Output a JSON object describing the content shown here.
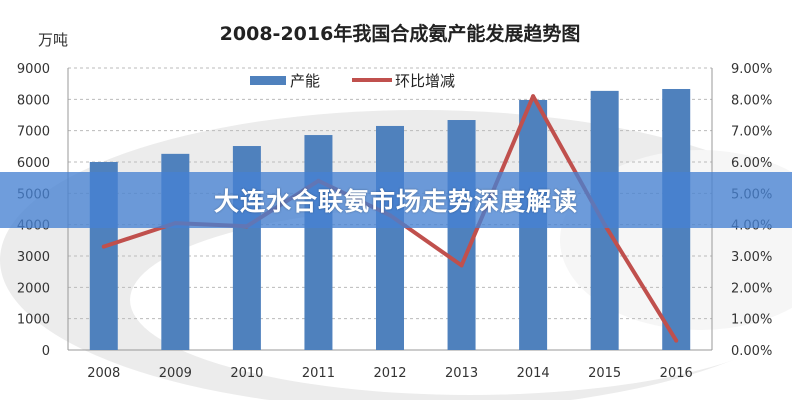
{
  "banner": {
    "title": "大连水合联氨市场走势深度解读"
  },
  "chart_data": {
    "type": "bar+line",
    "title": "2008-2016年我国合成氨产能发展趋势图",
    "ylabel": "万吨",
    "categories": [
      "2008",
      "2009",
      "2010",
      "2011",
      "2012",
      "2013",
      "2014",
      "2015",
      "2016"
    ],
    "series": [
      {
        "name": "产能",
        "type": "bar",
        "axis": "left",
        "color": "#4f81bd",
        "values": [
          6000,
          6260,
          6510,
          6860,
          7150,
          7340,
          7980,
          8270,
          8330
        ]
      },
      {
        "name": "环比增减",
        "type": "line",
        "axis": "right",
        "color": "#c0504d",
        "values": [
          3.3,
          4.05,
          3.95,
          5.4,
          4.3,
          2.7,
          8.1,
          4.0,
          0.3
        ]
      }
    ],
    "ylim": [
      0,
      9000
    ],
    "y2lim": [
      0,
      9
    ],
    "yticks": [
      "0",
      "1000",
      "2000",
      "3000",
      "4000",
      "5000",
      "6000",
      "7000",
      "8000",
      "9000"
    ],
    "y2ticks": [
      "0.00%",
      "1.00%",
      "2.00%",
      "3.00%",
      "4.00%",
      "5.00%",
      "6.00%",
      "7.00%",
      "8.00%",
      "9.00%"
    ],
    "grid": true,
    "legend": "top-center"
  }
}
